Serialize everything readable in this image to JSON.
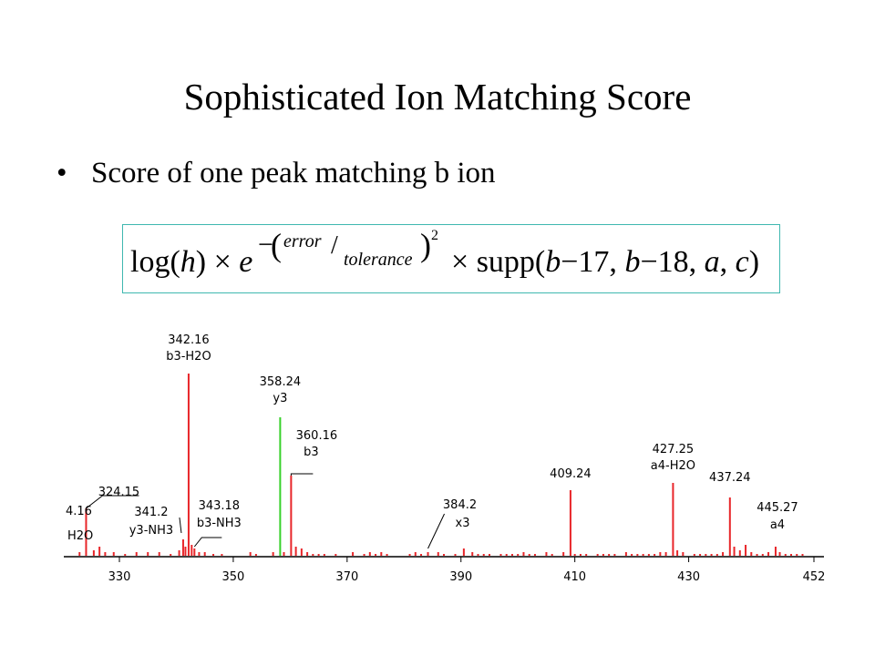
{
  "slide": {
    "title": "Sophisticated Ion Matching Score",
    "bullet": "Score of one peak matching b ion"
  },
  "formula": {
    "log_part": "log(",
    "h": "h",
    "log_close": ")",
    "times1": "×",
    "e": "e",
    "minus": "−",
    "error": "error",
    "tolerance": "tolerance",
    "square": "2",
    "times2": "×",
    "supp": "supp(",
    "b1": "b",
    "minus17": "−17, ",
    "b2": "b",
    "minus18": "−18, ",
    "a": "a",
    "comma": ", ",
    "c": "c",
    "close": ")"
  },
  "colors": {
    "peak": "#e8262a",
    "highlight_peak": "#38d12a",
    "axis": "#000000",
    "formula_border": "#3fb8b0"
  },
  "chart_data": {
    "type": "bar",
    "title": "",
    "xlabel": "",
    "ylabel": "",
    "xlim": [
      324,
      452
    ],
    "x_ticks": [
      330,
      350,
      370,
      390,
      410,
      430,
      452
    ],
    "labeled_peaks": [
      {
        "mz": 324.15,
        "intensity": 0.26,
        "label": "324.15",
        "ion": "",
        "color": "red"
      },
      {
        "mz": 341.2,
        "intensity": 0.09,
        "label": "341.2",
        "ion": "y3-NH3",
        "color": "red"
      },
      {
        "mz": 342.16,
        "intensity": 1.0,
        "label": "342.16",
        "ion": "b3-H2O",
        "color": "red"
      },
      {
        "mz": 343.18,
        "intensity": 0.04,
        "label": "343.18",
        "ion": "b3-NH3",
        "color": "red"
      },
      {
        "mz": 358.24,
        "intensity": 0.76,
        "label": "358.24",
        "ion": "y3",
        "color": "green"
      },
      {
        "mz": 360.16,
        "intensity": 0.44,
        "label": "360.16",
        "ion": "b3",
        "color": "red"
      },
      {
        "mz": 384.2,
        "intensity": 0.02,
        "label": "384.2",
        "ion": "x3",
        "color": "red"
      },
      {
        "mz": 409.24,
        "intensity": 0.36,
        "label": "409.24",
        "ion": "",
        "color": "red"
      },
      {
        "mz": 427.25,
        "intensity": 0.4,
        "label": "427.25",
        "ion": "a4-H2O",
        "color": "red"
      },
      {
        "mz": 437.24,
        "intensity": 0.32,
        "label": "437.24",
        "ion": "",
        "color": "red"
      },
      {
        "mz": 445.27,
        "intensity": 0.05,
        "label": "445.27",
        "ion": "a4",
        "color": "red"
      }
    ],
    "edge_label": {
      "text": "4.16",
      "ion": "H2O"
    },
    "minor_peaks": [
      [
        323.0,
        0.02
      ],
      [
        325.5,
        0.03
      ],
      [
        326.5,
        0.05
      ],
      [
        327.5,
        0.02
      ],
      [
        329,
        0.02
      ],
      [
        331,
        0.01
      ],
      [
        333,
        0.02
      ],
      [
        335,
        0.02
      ],
      [
        337,
        0.02
      ],
      [
        339,
        0.01
      ],
      [
        340.5,
        0.03
      ],
      [
        341.6,
        0.05
      ],
      [
        342.7,
        0.06
      ],
      [
        344,
        0.02
      ],
      [
        345,
        0.02
      ],
      [
        346.5,
        0.01
      ],
      [
        348,
        0.01
      ],
      [
        353,
        0.02
      ],
      [
        354,
        0.01
      ],
      [
        357,
        0.02
      ],
      [
        358.9,
        0.02
      ],
      [
        361,
        0.05
      ],
      [
        362,
        0.04
      ],
      [
        363,
        0.02
      ],
      [
        364,
        0.01
      ],
      [
        365,
        0.01
      ],
      [
        366,
        0.01
      ],
      [
        368,
        0.01
      ],
      [
        371,
        0.02
      ],
      [
        373,
        0.01
      ],
      [
        374,
        0.02
      ],
      [
        375,
        0.01
      ],
      [
        376,
        0.02
      ],
      [
        377,
        0.01
      ],
      [
        381,
        0.01
      ],
      [
        382,
        0.02
      ],
      [
        383,
        0.01
      ],
      [
        386,
        0.02
      ],
      [
        387,
        0.01
      ],
      [
        389,
        0.01
      ],
      [
        390.5,
        0.04
      ],
      [
        392,
        0.02
      ],
      [
        393,
        0.01
      ],
      [
        394,
        0.01
      ],
      [
        395,
        0.01
      ],
      [
        397,
        0.01
      ],
      [
        398,
        0.01
      ],
      [
        399,
        0.01
      ],
      [
        400,
        0.01
      ],
      [
        401,
        0.02
      ],
      [
        402,
        0.01
      ],
      [
        403,
        0.01
      ],
      [
        405,
        0.02
      ],
      [
        406,
        0.01
      ],
      [
        408,
        0.02
      ],
      [
        410,
        0.01
      ],
      [
        411,
        0.01
      ],
      [
        412,
        0.01
      ],
      [
        414,
        0.01
      ],
      [
        415,
        0.01
      ],
      [
        416,
        0.01
      ],
      [
        417,
        0.01
      ],
      [
        419,
        0.02
      ],
      [
        420,
        0.01
      ],
      [
        421,
        0.01
      ],
      [
        422,
        0.01
      ],
      [
        423,
        0.01
      ],
      [
        424,
        0.01
      ],
      [
        425,
        0.02
      ],
      [
        426,
        0.02
      ],
      [
        428,
        0.03
      ],
      [
        429,
        0.02
      ],
      [
        431,
        0.01
      ],
      [
        432,
        0.01
      ],
      [
        433,
        0.01
      ],
      [
        434,
        0.01
      ],
      [
        435,
        0.01
      ],
      [
        436,
        0.02
      ],
      [
        438,
        0.05
      ],
      [
        439,
        0.03
      ],
      [
        440,
        0.06
      ],
      [
        441,
        0.02
      ],
      [
        442,
        0.01
      ],
      [
        443,
        0.01
      ],
      [
        444,
        0.02
      ],
      [
        446,
        0.02
      ],
      [
        447,
        0.01
      ],
      [
        448,
        0.01
      ],
      [
        449,
        0.01
      ],
      [
        450,
        0.01
      ]
    ]
  }
}
